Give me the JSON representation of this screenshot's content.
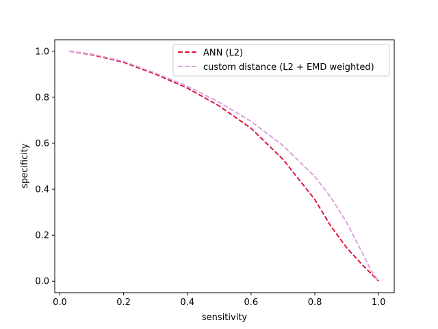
{
  "chart_data": {
    "type": "line",
    "title": "",
    "xlabel": "sensitivity",
    "ylabel": "specificity",
    "xlim": [
      -0.016,
      1.049
    ],
    "ylim": [
      -0.05,
      1.05
    ],
    "x_ticks": [
      "0.0",
      "0.2",
      "0.4",
      "0.6",
      "0.8",
      "1.0"
    ],
    "y_ticks": [
      "0.0",
      "0.2",
      "0.4",
      "0.6",
      "0.8",
      "1.0"
    ],
    "grid": false,
    "legend_position": "top-right",
    "series": [
      {
        "name": "ANN (L2)",
        "color": "#dc143c",
        "linestyle": "dashed",
        "x": [
          0.03,
          0.1,
          0.2,
          0.3,
          0.4,
          0.5,
          0.6,
          0.7,
          0.8,
          0.85,
          0.9,
          0.95,
          1.0
        ],
        "y": [
          1.0,
          0.985,
          0.952,
          0.9,
          0.84,
          0.762,
          0.665,
          0.53,
          0.355,
          0.24,
          0.145,
          0.07,
          0.0
        ]
      },
      {
        "name": "custom distance (L2 + EMD weighted)",
        "color": "#dda0dd",
        "linestyle": "dashed",
        "x": [
          0.03,
          0.1,
          0.2,
          0.3,
          0.4,
          0.5,
          0.6,
          0.7,
          0.8,
          0.85,
          0.9,
          0.95,
          0.975,
          1.0
        ],
        "y": [
          1.0,
          0.988,
          0.956,
          0.905,
          0.848,
          0.778,
          0.695,
          0.59,
          0.455,
          0.365,
          0.255,
          0.12,
          0.05,
          0.0
        ]
      }
    ]
  }
}
